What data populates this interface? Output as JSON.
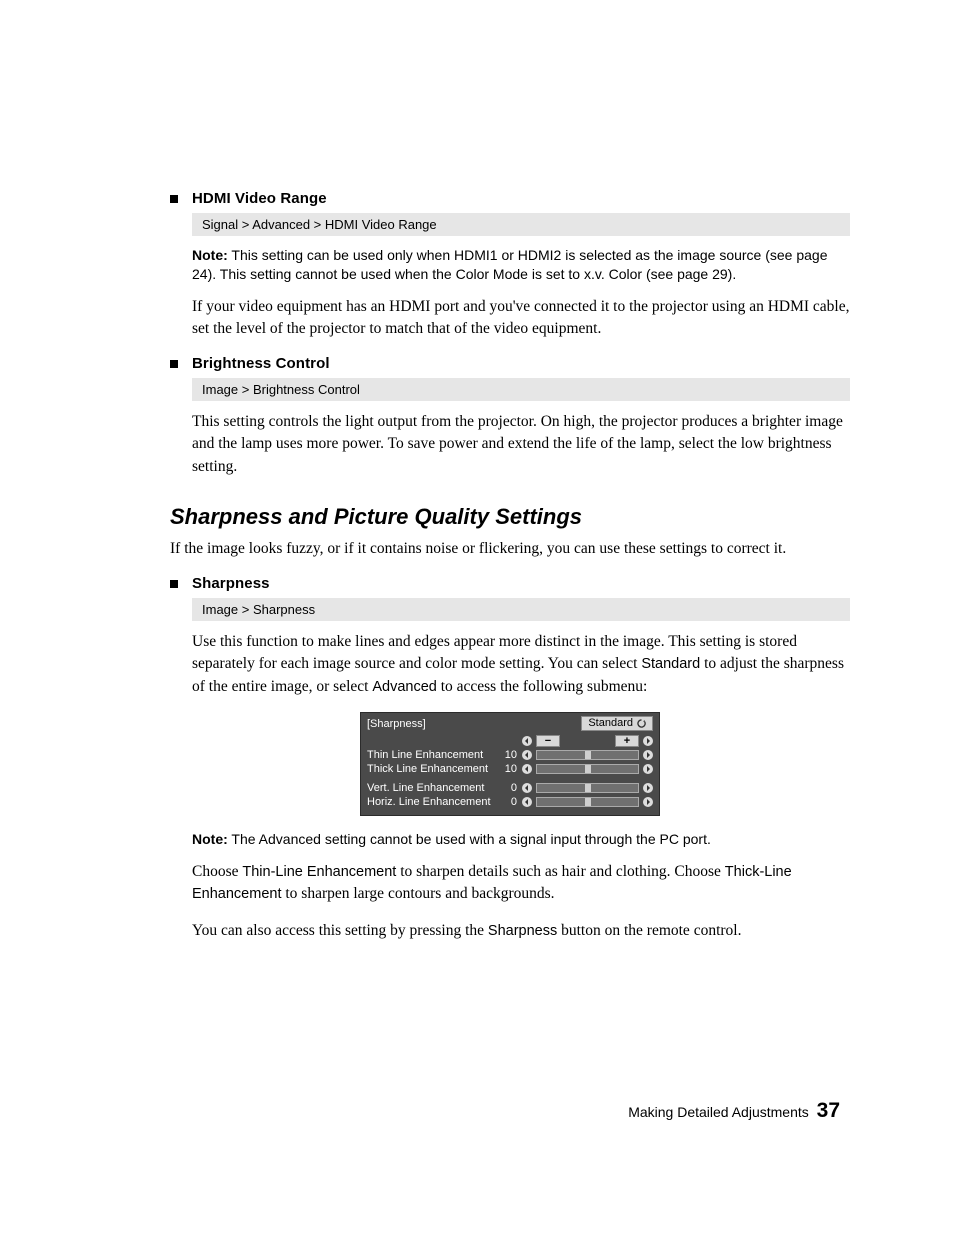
{
  "sections": {
    "hdmi": {
      "title": "HDMI Video Range",
      "path": "Signal > Advanced > HDMI Video Range",
      "note_label": "Note:",
      "note_text": " This setting can be used only when HDMI1 or HDMI2 is selected as the image source (see page 24). This setting cannot be used when the Color Mode is set to x.v. Color (see page 29).",
      "body": "If your video equipment has an HDMI port and you've connected it to the projector using an HDMI cable, set the level of the projector to match that of the video equipment."
    },
    "brightness": {
      "title": "Brightness Control",
      "path": "Image > Brightness Control",
      "body": "This setting controls the light output from the projector. On high, the projector produces a brighter image and the lamp uses more power. To save power and extend the life of the lamp, select the low brightness setting."
    },
    "quality": {
      "heading": "Sharpness and Picture Quality Settings",
      "intro": "If the image looks fuzzy, or if it contains noise or flickering, you can use these settings to correct it."
    },
    "sharpness": {
      "title": "Sharpness",
      "path": "Image > Sharpness",
      "body_pre": "Use this function to make lines and edges appear more distinct in the image. This setting is stored separately for each image source and color mode setting. You can select ",
      "standard": "Standard",
      "body_mid": " to adjust the sharpness of the entire image, or select ",
      "advanced": "Advanced",
      "body_post": " to access the following submenu:",
      "note_label": "Note:",
      "note_text": " The Advanced setting cannot be used with a signal input through the PC port.",
      "para2_pre": "Choose ",
      "thin": "Thin-Line Enhancement",
      "para2_mid": " to sharpen details such as hair and clothing. Choose ",
      "thick": "Thick-Line Enhancement",
      "para2_post": " to sharpen large contours and backgrounds.",
      "para3_pre": "You can also access this setting by pressing the ",
      "sharp_btn": "Sharpness",
      "para3_post": " button on the remote control."
    }
  },
  "osd": {
    "title": "[Sharpness]",
    "header_right": "Standard",
    "background_color": "#4a4a4a",
    "text_color": "#ffffff",
    "rows": [
      {
        "label": "",
        "value": "",
        "thumb_pos": 0.48,
        "show_pm": true
      },
      {
        "label": "Thin Line Enhancement",
        "value": "10",
        "thumb_pos": 0.48,
        "show_pm": false
      },
      {
        "label": "Thick Line Enhancement",
        "value": "10",
        "thumb_pos": 0.48,
        "show_pm": false
      }
    ],
    "rows2": [
      {
        "label": "Vert. Line Enhancement",
        "value": "0",
        "thumb_pos": 0.48,
        "show_pm": false
      },
      {
        "label": "Horiz. Line Enhancement",
        "value": "0",
        "thumb_pos": 0.48,
        "show_pm": false
      }
    ]
  },
  "footer": {
    "text": "Making Detailed Adjustments",
    "page": "37"
  }
}
